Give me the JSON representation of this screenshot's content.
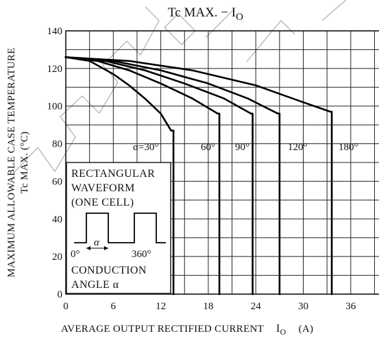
{
  "chart_data": {
    "type": "line",
    "title_main": "Tc MAX.  −  I",
    "title_sub": "O",
    "xlabel_main": "AVERAGE OUTPUT RECTIFIED CURRENT",
    "xlabel_sym": "I",
    "xlabel_sub": "O",
    "xlabel_unit": "(A)",
    "ylabel_line1": "MAXIMUM ALLOWABLE CASE TEMPERATURE",
    "ylabel_line2": "Tc MAX.  (°C)",
    "xlim": [
      0,
      40
    ],
    "ylim": [
      0,
      140
    ],
    "x_ticks": [
      0,
      6,
      12,
      18,
      24,
      30,
      36
    ],
    "y_ticks": [
      0,
      20,
      40,
      60,
      80,
      100,
      120,
      140
    ],
    "grid": true,
    "series": [
      {
        "name": "α=30°",
        "points": [
          [
            0,
            126
          ],
          [
            3,
            124
          ],
          [
            6,
            117
          ],
          [
            8,
            111
          ],
          [
            10,
            104
          ],
          [
            12,
            96
          ],
          [
            13.3,
            87
          ],
          [
            13.6,
            87
          ],
          [
            13.6,
            0
          ]
        ]
      },
      {
        "name": "60°",
        "points": [
          [
            0,
            126
          ],
          [
            4,
            124
          ],
          [
            8,
            119
          ],
          [
            12,
            112
          ],
          [
            16,
            104
          ],
          [
            19.2,
            96
          ],
          [
            19.4,
            96
          ],
          [
            19.4,
            0
          ]
        ]
      },
      {
        "name": "90°",
        "points": [
          [
            0,
            126
          ],
          [
            5,
            124
          ],
          [
            10,
            119
          ],
          [
            15,
            112
          ],
          [
            20,
            104
          ],
          [
            23.4,
            96
          ],
          [
            23.6,
            96
          ],
          [
            23.6,
            0
          ]
        ]
      },
      {
        "name": "120°",
        "points": [
          [
            0,
            126
          ],
          [
            6,
            124
          ],
          [
            12,
            119
          ],
          [
            18,
            112
          ],
          [
            23,
            104
          ],
          [
            26.8,
            96
          ],
          [
            27,
            96
          ],
          [
            27,
            0
          ]
        ]
      },
      {
        "name": "180°",
        "points": [
          [
            0,
            126
          ],
          [
            8,
            124
          ],
          [
            16,
            119
          ],
          [
            24,
            111
          ],
          [
            30,
            102
          ],
          [
            33.4,
            97
          ],
          [
            33.6,
            97
          ],
          [
            33.6,
            0
          ]
        ]
      }
    ],
    "inset": {
      "line1": "RECTANGULAR",
      "line2": "WAVEFORM",
      "line3": "(ONE CELL)",
      "alpha": "α",
      "deg0": "0°",
      "deg360": "360°",
      "line4": "CONDUCTION",
      "line5": "ANGLE  α"
    }
  }
}
